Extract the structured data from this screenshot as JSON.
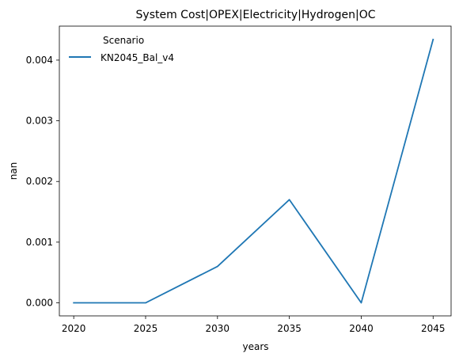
{
  "chart_data": {
    "type": "line",
    "title": "System Cost|OPEX|Electricity|Hydrogen|OC",
    "xlabel": "years",
    "ylabel": "nan",
    "x": [
      2020,
      2025,
      2030,
      2035,
      2040,
      2045
    ],
    "x_ticks": [
      "2020",
      "2025",
      "2030",
      "2035",
      "2040",
      "2045"
    ],
    "y_ticks": [
      "0.000",
      "0.001",
      "0.002",
      "0.003",
      "0.004"
    ],
    "y_tick_values": [
      0,
      0.001,
      0.002,
      0.003,
      0.004
    ],
    "xlim": [
      2019.0,
      2046.25
    ],
    "ylim": [
      -0.000215,
      0.00456
    ],
    "grid": false,
    "legend": {
      "title": "Scenario",
      "placement": "top-left"
    },
    "series": [
      {
        "name": "KN2045_Bal_v4",
        "color": "#1f77b4",
        "values": [
          0.0,
          0.0,
          0.0006,
          0.0017,
          0.0,
          0.00434
        ]
      }
    ]
  }
}
